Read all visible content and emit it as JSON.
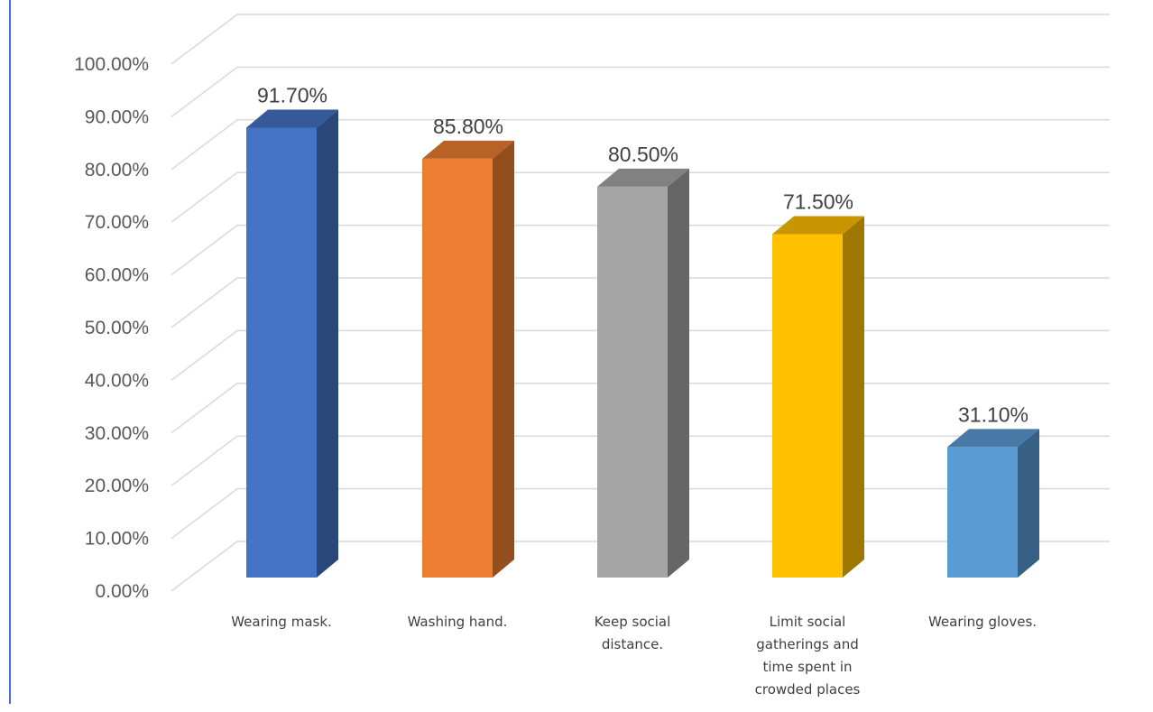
{
  "chart_data": {
    "type": "bar",
    "title": "",
    "xlabel": "",
    "ylabel": "",
    "ylim": [
      0,
      100
    ],
    "y_ticks": [
      "0.00%",
      "10.00%",
      "20.00%",
      "30.00%",
      "40.00%",
      "50.00%",
      "60.00%",
      "70.00%",
      "80.00%",
      "90.00%",
      "100.00%"
    ],
    "categories": [
      [
        "Wearing mask."
      ],
      [
        "Washing hand."
      ],
      [
        "Keep social",
        "distance."
      ],
      [
        "Limit social",
        "gatherings and",
        "time spent in",
        "crowded places"
      ],
      [
        "Wearing gloves."
      ]
    ],
    "values": [
      91.7,
      85.8,
      80.5,
      71.5,
      31.1
    ],
    "data_labels": [
      "91.70%",
      "85.80%",
      "80.50%",
      "71.50%",
      "31.10%"
    ],
    "colors": [
      "#4472c4",
      "#ed7d31",
      "#a5a5a5",
      "#ffc000",
      "#5b9bd5"
    ],
    "grid": true,
    "legend": "none",
    "style": "3d-column"
  }
}
